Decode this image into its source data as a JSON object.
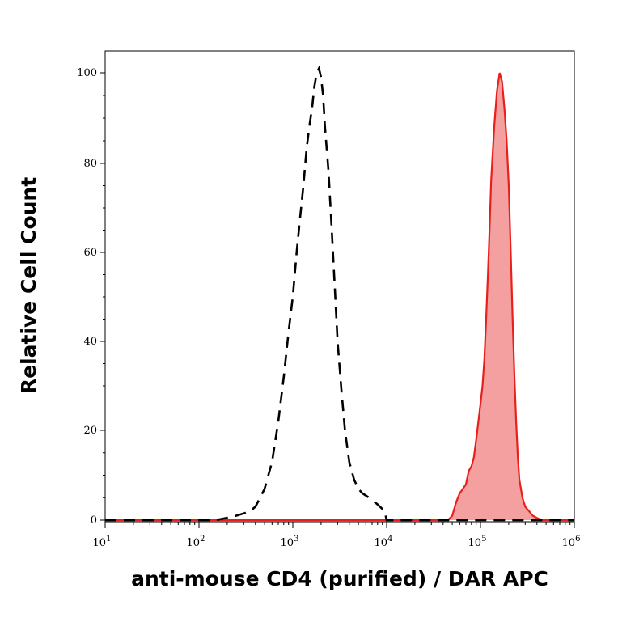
{
  "chart_data": {
    "type": "area",
    "title": "",
    "xlabel": "anti-mouse CD4 (purified) / DAR APC",
    "ylabel": "Relative Cell Count",
    "x_scale": "log",
    "xlim": [
      10,
      1000000
    ],
    "ylim": [
      0,
      105
    ],
    "x_ticks": [
      {
        "base": "10",
        "exp": "1"
      },
      {
        "base": "10",
        "exp": "2"
      },
      {
        "base": "10",
        "exp": "3"
      },
      {
        "base": "10",
        "exp": "4"
      },
      {
        "base": "10",
        "exp": "5"
      },
      {
        "base": "10",
        "exp": "6"
      }
    ],
    "y_ticks": [
      "0",
      "20",
      "40",
      "60",
      "80",
      "100"
    ],
    "grid": false,
    "colors": {
      "stained_fill": "#f4a0a0",
      "stained_line": "#e8201c",
      "control_line": "#000000"
    },
    "series": [
      {
        "style": "dashed-black",
        "x": [
          10,
          150,
          200,
          250,
          300,
          350,
          400,
          500,
          600,
          700,
          800,
          900,
          1000,
          1100,
          1200,
          1300,
          1400,
          1500,
          1600,
          1700,
          1800,
          1900,
          2000,
          2100,
          2200,
          2400,
          2600,
          2800,
          3000,
          3300,
          3600,
          4000,
          4500,
          5000,
          5500,
          6000,
          6500,
          7000,
          7500,
          8000,
          8500,
          9000,
          9500,
          10000,
          1000000
        ],
        "values": [
          0,
          0,
          0.5,
          1,
          1.5,
          2,
          3,
          7,
          13,
          22,
          32,
          42,
          50,
          60,
          68,
          75,
          83,
          88,
          92,
          97,
          100,
          101,
          99,
          95,
          88,
          78,
          65,
          52,
          40,
          29,
          20,
          13,
          9,
          7,
          6,
          5.5,
          5,
          4.5,
          4,
          3.5,
          3,
          2.5,
          2,
          0,
          0
        ]
      },
      {
        "style": "filled-red",
        "x": [
          10,
          45000,
          50000,
          55000,
          60000,
          65000,
          70000,
          75000,
          80000,
          85000,
          90000,
          95000,
          100000,
          105000,
          110000,
          115000,
          120000,
          125000,
          130000,
          140000,
          150000,
          160000,
          170000,
          180000,
          190000,
          200000,
          210000,
          220000,
          230000,
          240000,
          250000,
          260000,
          280000,
          300000,
          330000,
          360000,
          400000,
          450000,
          1000000
        ],
        "values": [
          0,
          0,
          1,
          4,
          6,
          7,
          8,
          11,
          12,
          14,
          18,
          22,
          26,
          30,
          36,
          45,
          55,
          65,
          76,
          88,
          96,
          100,
          98,
          92,
          85,
          75,
          60,
          45,
          32,
          22,
          14,
          9,
          5,
          3,
          2,
          1,
          0.5,
          0,
          0
        ]
      }
    ]
  }
}
